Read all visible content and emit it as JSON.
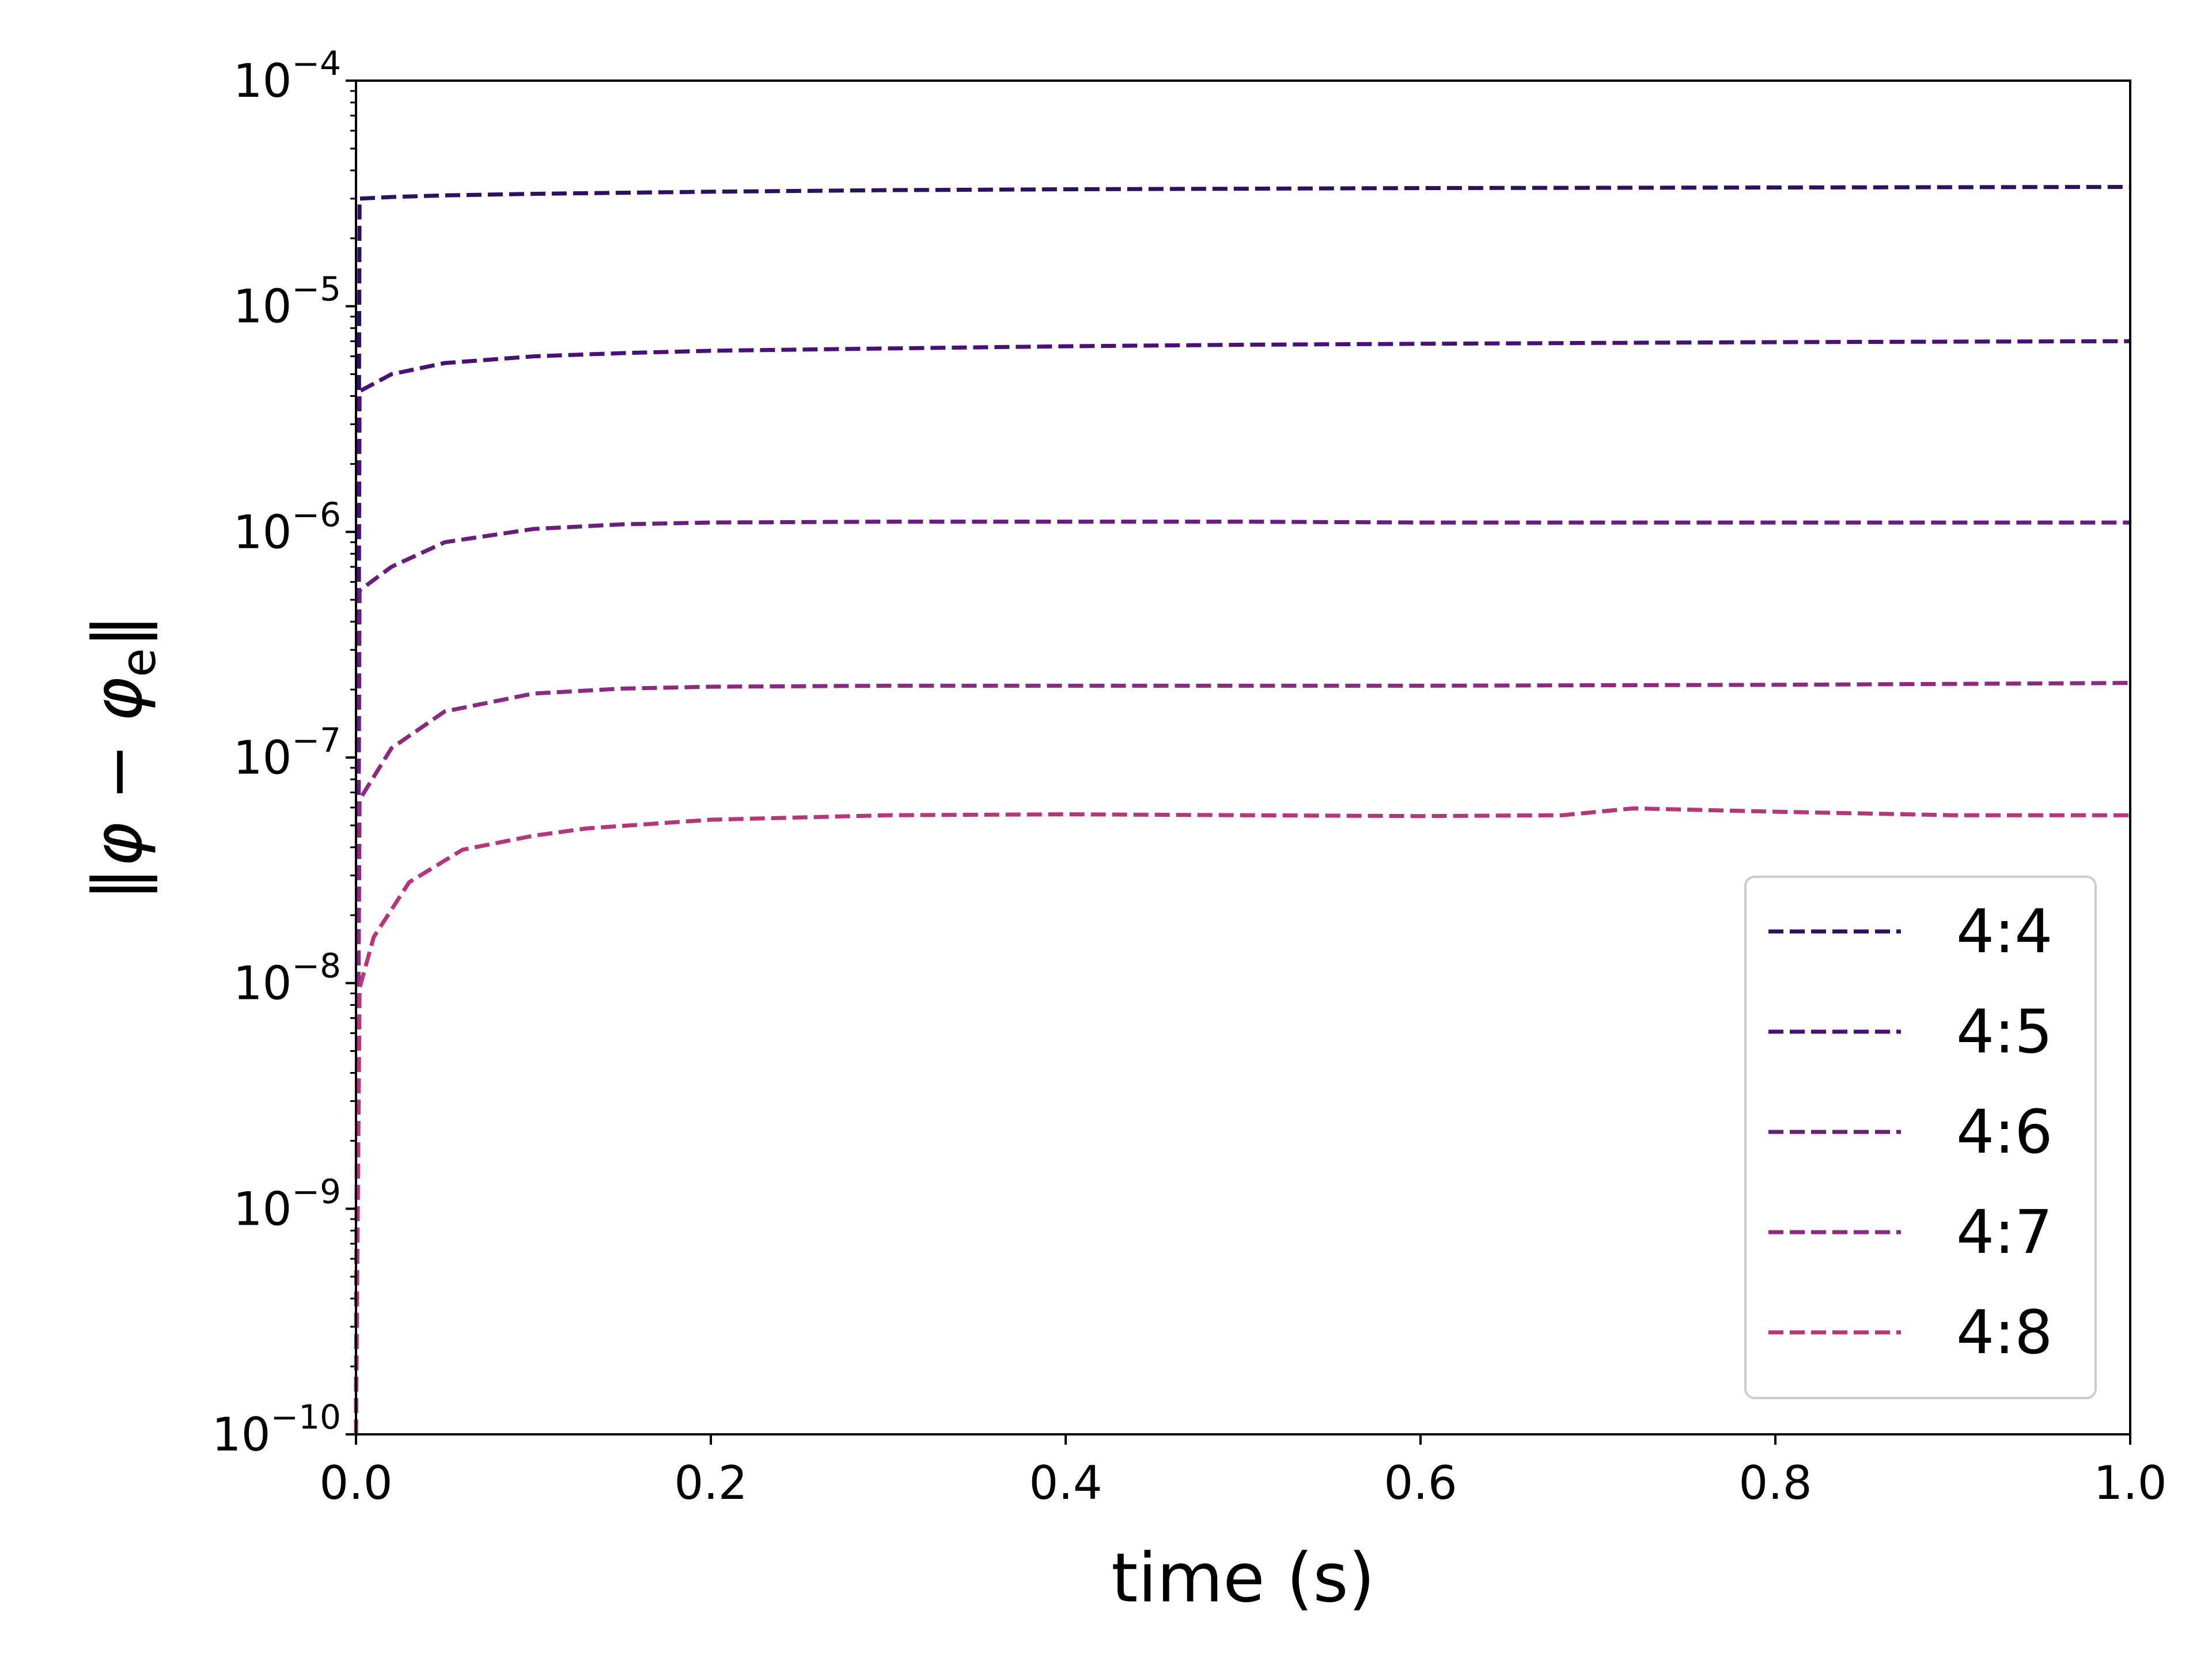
{
  "chart_data": {
    "type": "line",
    "title": "",
    "xlabel": "time (s)",
    "ylabel": "‖φ − φe‖",
    "ylabel_parts": {
      "open": "‖",
      "phi": "φ",
      "minus": " − ",
      "phi2": "φ",
      "sub": "e",
      "close": "‖"
    },
    "xlim": [
      0.0,
      1.0
    ],
    "ylim": [
      1e-10,
      0.0001
    ],
    "yscale": "log",
    "grid": false,
    "legend_position": "lower right",
    "line_style": "dashed",
    "x_ticks": [
      "0.0",
      "0.2",
      "0.4",
      "0.6",
      "0.8",
      "1.0"
    ],
    "y_ticks": [
      {
        "base": "10",
        "exp": "−10",
        "value": 1e-10
      },
      {
        "base": "10",
        "exp": "−9",
        "value": 1e-09
      },
      {
        "base": "10",
        "exp": "−8",
        "value": 1e-08
      },
      {
        "base": "10",
        "exp": "−7",
        "value": 1e-07
      },
      {
        "base": "10",
        "exp": "−6",
        "value": 1e-06
      },
      {
        "base": "10",
        "exp": "−5",
        "value": 1e-05
      },
      {
        "base": "10",
        "exp": "−4",
        "value": 0.0001
      }
    ],
    "series": [
      {
        "name": "4:4",
        "color": "#2d1160",
        "x": [
          0.0,
          0.002,
          0.02,
          0.05,
          0.1,
          0.2,
          0.3,
          0.4,
          0.5,
          0.6,
          0.7,
          0.8,
          0.9,
          1.0
        ],
        "y": [
          1e-10,
          3e-05,
          3.05e-05,
          3.1e-05,
          3.15e-05,
          3.22e-05,
          3.27e-05,
          3.3e-05,
          3.32e-05,
          3.34e-05,
          3.35e-05,
          3.36e-05,
          3.37e-05,
          3.38e-05
        ]
      },
      {
        "name": "4:5",
        "color": "#4a1079",
        "x": [
          0.0,
          0.002,
          0.02,
          0.05,
          0.1,
          0.15,
          0.2,
          0.3,
          0.4,
          0.5,
          0.6,
          0.7,
          0.8,
          0.9,
          1.0
        ],
        "y": [
          1e-10,
          4.2e-06,
          5e-06,
          5.6e-06,
          6e-06,
          6.2e-06,
          6.35e-06,
          6.5e-06,
          6.65e-06,
          6.75e-06,
          6.82e-06,
          6.88e-06,
          6.93e-06,
          6.97e-06,
          7e-06
        ]
      },
      {
        "name": "4:6",
        "color": "#6a1d80",
        "x": [
          0.0,
          0.002,
          0.02,
          0.05,
          0.1,
          0.15,
          0.2,
          0.3,
          0.4,
          0.5,
          0.6,
          0.7,
          0.8,
          0.9,
          1.0
        ],
        "y": [
          1e-10,
          5.5e-07,
          7e-07,
          9e-07,
          1.03e-06,
          1.08e-06,
          1.1e-06,
          1.11e-06,
          1.11e-06,
          1.11e-06,
          1.1e-06,
          1.1e-06,
          1.1e-06,
          1.1e-06,
          1.1e-06
        ]
      },
      {
        "name": "4:7",
        "color": "#8c2981",
        "x": [
          0.0,
          0.002,
          0.02,
          0.05,
          0.1,
          0.15,
          0.2,
          0.3,
          0.4,
          0.5,
          0.6,
          0.7,
          0.8,
          0.9,
          1.0
        ],
        "y": [
          1e-10,
          6.5e-08,
          1.1e-07,
          1.6e-07,
          1.92e-07,
          2.02e-07,
          2.06e-07,
          2.08e-07,
          2.08e-07,
          2.08e-07,
          2.08e-07,
          2.09e-07,
          2.1e-07,
          2.12e-07,
          2.14e-07
        ]
      },
      {
        "name": "4:8",
        "color": "#b5367a",
        "x": [
          0.0,
          0.002,
          0.01,
          0.03,
          0.06,
          0.1,
          0.13,
          0.2,
          0.3,
          0.4,
          0.5,
          0.6,
          0.68,
          0.72,
          0.8,
          0.9,
          1.0
        ],
        "y": [
          1e-10,
          9.5e-09,
          1.6e-08,
          2.8e-08,
          3.9e-08,
          4.5e-08,
          4.85e-08,
          5.3e-08,
          5.55e-08,
          5.6e-08,
          5.55e-08,
          5.5e-08,
          5.55e-08,
          5.95e-08,
          5.75e-08,
          5.55e-08,
          5.55e-08
        ]
      }
    ]
  }
}
